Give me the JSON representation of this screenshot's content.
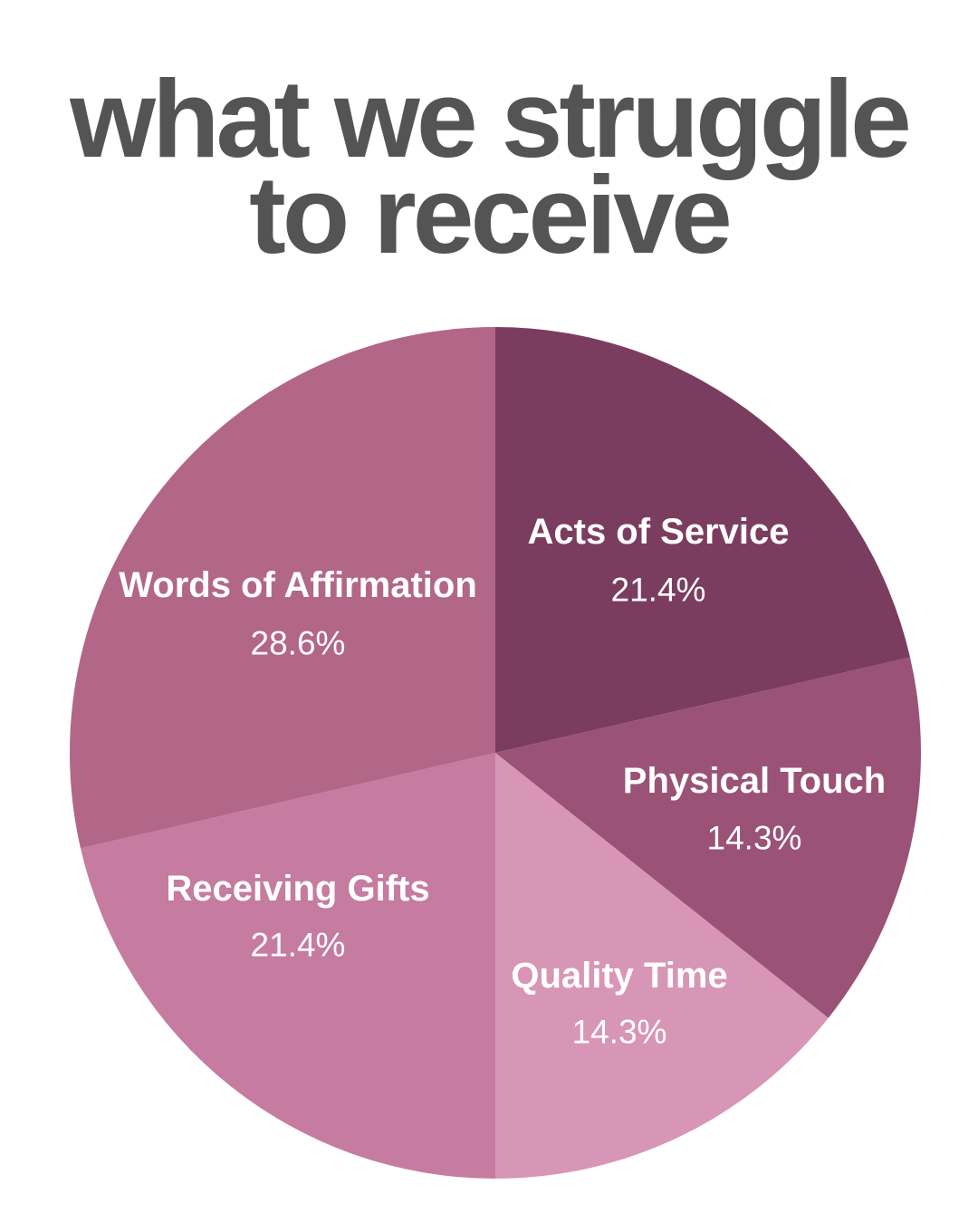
{
  "title_lines": [
    "what we struggle",
    "to receive"
  ],
  "chart_data": {
    "type": "pie",
    "title": "what we struggle to receive",
    "start_angle_deg": 0,
    "direction": "clockwise",
    "slices": [
      {
        "label": "Acts of Service",
        "value": 21.4,
        "value_label": "21.4%",
        "color": "#7b3d5f"
      },
      {
        "label": "Physical Touch",
        "value": 14.3,
        "value_label": "14.3%",
        "color": "#9a5277"
      },
      {
        "label": "Quality Time",
        "value": 14.3,
        "value_label": "14.3%",
        "color": "#d796b5"
      },
      {
        "label": "Receiving Gifts",
        "value": 21.4,
        "value_label": "21.4%",
        "color": "#c57ca0"
      },
      {
        "label": "Words of Affirmation",
        "value": 28.6,
        "value_label": "28.6%",
        "color": "#b26788"
      }
    ]
  }
}
